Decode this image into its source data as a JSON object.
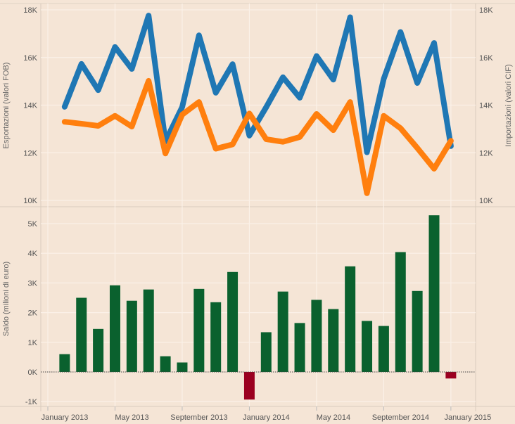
{
  "chart_data": [
    {
      "type": "line",
      "x": [
        "2013-02",
        "2013-03",
        "2013-04",
        "2013-05",
        "2013-06",
        "2013-07",
        "2013-08",
        "2013-09",
        "2013-10",
        "2013-11",
        "2013-12",
        "2014-01",
        "2014-02",
        "2014-03",
        "2014-04",
        "2014-05",
        "2014-06",
        "2014-07",
        "2014-08",
        "2014-09",
        "2014-10",
        "2014-11",
        "2014-12",
        "2015-01"
      ],
      "ylabel": "Esportazioni (valori FOB)",
      "y2label": "Importazioni (valori CIF)",
      "ylim": [
        10000,
        18000
      ],
      "y2lim": [
        10000,
        18000
      ],
      "yticks": [
        "10K",
        "12K",
        "14K",
        "16K",
        "18K"
      ],
      "grid": true,
      "series": [
        {
          "axis": "left",
          "color": "#1f77b4",
          "values": [
            13930,
            15730,
            14630,
            16440,
            15520,
            17760,
            12480,
            13920,
            16930,
            14520,
            15720,
            12720,
            13910,
            15170,
            14310,
            16060,
            15070,
            17690,
            12020,
            15100,
            17070,
            14930,
            16610,
            12280
          ]
        },
        {
          "axis": "right",
          "color": "#ff7f0e",
          "values": [
            13300,
            13220,
            13130,
            13550,
            13100,
            15020,
            11970,
            13600,
            14130,
            12170,
            12350,
            13650,
            12570,
            12460,
            12660,
            13630,
            12950,
            14130,
            10300,
            13550,
            13030,
            12200,
            11330,
            12500
          ]
        }
      ]
    },
    {
      "type": "bar",
      "x": [
        "2013-02",
        "2013-03",
        "2013-04",
        "2013-05",
        "2013-06",
        "2013-07",
        "2013-08",
        "2013-09",
        "2013-10",
        "2013-11",
        "2013-12",
        "2014-01",
        "2014-02",
        "2014-03",
        "2014-04",
        "2014-05",
        "2014-06",
        "2014-07",
        "2014-08",
        "2014-09",
        "2014-10",
        "2014-11",
        "2014-12",
        "2015-01"
      ],
      "values": [
        600,
        2500,
        1450,
        2920,
        2400,
        2780,
        530,
        320,
        2800,
        2350,
        3370,
        -930,
        1340,
        2710,
        1650,
        2430,
        2120,
        3560,
        1720,
        1550,
        4040,
        2730,
        5280,
        -220
      ],
      "ylabel": "Saldo (milioni di euro)",
      "ylim": [
        -1000,
        5000
      ],
      "yticks": [
        "-1K",
        "0K",
        "1K",
        "2K",
        "3K",
        "4K",
        "5K"
      ],
      "positive_color": "#0a612e",
      "negative_color": "#9b0020",
      "grid": true,
      "xticks": [
        "January 2013",
        "May 2013",
        "September 2013",
        "January 2014",
        "May 2014",
        "September 2014",
        "January 2015"
      ]
    }
  ]
}
